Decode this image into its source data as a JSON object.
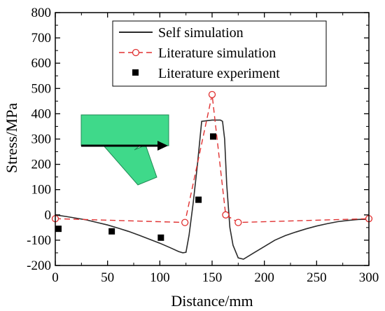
{
  "chart_data": {
    "type": "line",
    "xlabel": "Distance/mm",
    "ylabel": "Stress/MPa",
    "xlim": [
      0,
      300
    ],
    "ylim": [
      -200,
      800
    ],
    "x_ticks": [
      0,
      50,
      100,
      150,
      200,
      250,
      300
    ],
    "y_ticks": [
      -200,
      -100,
      0,
      100,
      200,
      300,
      400,
      500,
      600,
      700,
      800
    ],
    "grid": false,
    "legend_position": "top-center",
    "colors": {
      "self_simulation": "#2b2b2b",
      "literature_simulation": "#e03030",
      "literature_experiment": "#000000",
      "inset_fill": "#3fd98a"
    },
    "series": [
      {
        "name": "Self simulation",
        "style": "solid-line",
        "x": [
          0,
          10,
          20,
          30,
          40,
          50,
          60,
          70,
          80,
          90,
          100,
          110,
          118,
          122,
          125,
          128,
          132,
          136,
          140,
          150,
          158,
          160,
          162,
          164,
          167,
          170,
          175,
          180,
          190,
          200,
          210,
          220,
          230,
          240,
          250,
          260,
          270,
          280,
          290,
          300
        ],
        "y": [
          0,
          -6,
          -13,
          -20,
          -30,
          -40,
          -52,
          -65,
          -80,
          -96,
          -112,
          -130,
          -145,
          -150,
          -148,
          -80,
          50,
          200,
          370,
          375,
          375,
          370,
          300,
          120,
          -50,
          -120,
          -170,
          -175,
          -150,
          -125,
          -100,
          -82,
          -68,
          -55,
          -44,
          -35,
          -27,
          -22,
          -18,
          -17
        ]
      },
      {
        "name": "Literature simulation",
        "style": "dashed-line-open-circle",
        "x": [
          0,
          124,
          150,
          163,
          175,
          300
        ],
        "y": [
          -15,
          -30,
          476,
          0,
          -30,
          -15
        ]
      },
      {
        "name": "Literature experiment",
        "style": "filled-square",
        "x": [
          3,
          54,
          101,
          137,
          151
        ],
        "y": [
          -55,
          -65,
          -90,
          60,
          310
        ]
      }
    ]
  }
}
